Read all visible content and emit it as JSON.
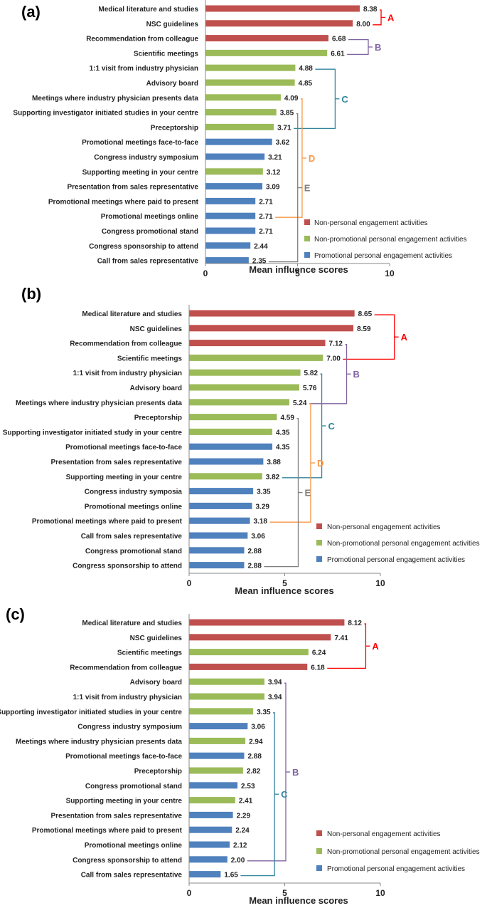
{
  "colors": {
    "non_personal": "#c0504d",
    "non_promotional": "#9bbb59",
    "promotional": "#4f81bd",
    "A": "#ff0000",
    "B": "#8064a2",
    "C": "#31859c",
    "D": "#f79646",
    "E": "#7f7f7f"
  },
  "legend": {
    "non_personal": "Non-personal engagement activities",
    "non_promotional": "Non-promotional personal engagement activities",
    "promotional": "Promotional personal engagement activities"
  },
  "chart_data": [
    {
      "type": "bar",
      "orientation": "horizontal",
      "panel": "(a)",
      "xlabel": "Mean influence scores",
      "xlim": [
        0,
        10
      ],
      "xticks": [
        "0",
        "5",
        "10"
      ],
      "categories": [
        "Medical literature and studies",
        "NSC guidelines",
        "Recommendation from colleague",
        "Scientific meetings",
        "1:1 visit from industry physician",
        "Advisory board",
        "Meetings where industry physician presents data",
        "Supporting investigator initiated studies in your centre",
        "Preceptorship",
        "Promotional meetings face-to-face",
        "Congress industry symposium",
        "Supporting meeting in your centre",
        "Presentation from sales representative",
        "Promotional meetings where paid to present",
        "Promotional meetings online",
        "Congress promotional stand",
        "Congress sponsorship to attend",
        "Call from sales representative"
      ],
      "values": [
        8.38,
        8.0,
        6.68,
        6.61,
        4.88,
        4.85,
        4.09,
        3.85,
        3.71,
        3.62,
        3.21,
        3.12,
        3.09,
        2.71,
        2.71,
        2.71,
        2.44,
        2.35
      ],
      "labels": [
        "8.38",
        "8.00",
        "6.68",
        "6.61",
        "4.88",
        "4.85",
        "4.09",
        "3.85",
        "3.71",
        "3.62",
        "3.21",
        "3.12",
        "3.09",
        "2.71",
        "2.71",
        "2.71",
        "2.44",
        "2.35"
      ],
      "series_type": [
        "non_personal",
        "non_personal",
        "non_personal",
        "non_promotional",
        "non_promotional",
        "non_promotional",
        "non_promotional",
        "non_promotional",
        "non_promotional",
        "promotional",
        "promotional",
        "non_promotional",
        "promotional",
        "promotional",
        "promotional",
        "promotional",
        "promotional",
        "promotional"
      ],
      "groups": [
        {
          "label": "A",
          "color": "A",
          "from": 0,
          "to": 1,
          "level": 0
        },
        {
          "label": "B",
          "color": "B",
          "from": 2,
          "to": 3,
          "level": 1
        },
        {
          "label": "C",
          "color": "C",
          "from": 4,
          "to": 8,
          "level": 1
        },
        {
          "label": "D",
          "color": "D",
          "from": 6,
          "to": 14,
          "level": 0
        },
        {
          "label": "E",
          "color": "E",
          "from": 7,
          "to": 17,
          "level": 0
        }
      ]
    },
    {
      "type": "bar",
      "orientation": "horizontal",
      "panel": "(b)",
      "xlabel": "Mean influence scores",
      "xlim": [
        0,
        10
      ],
      "xticks": [
        "0",
        "5",
        "10"
      ],
      "categories": [
        "Medical literature and studies",
        "NSC guidelines",
        "Recommendation from colleague",
        "Scientific meetings",
        "1:1 visit from industry physician",
        "Advisory board",
        "Meetings where industry physician presents data",
        "Preceptorship",
        "Supporting investigator initiated study in your centre",
        "Promotional meetings face-to-face",
        "Presentation from sales representative",
        "Supporting meeting in your centre",
        "Congress industry symposia",
        "Promotional meetings online",
        "Promotional meetings where paid to present",
        "Call from sales representative",
        "Congress promotional stand",
        "Congress sponsorship to attend"
      ],
      "values": [
        8.65,
        8.59,
        7.12,
        7.0,
        5.82,
        5.76,
        5.24,
        4.59,
        4.35,
        4.35,
        3.88,
        3.82,
        3.35,
        3.29,
        3.18,
        3.06,
        2.88,
        2.88
      ],
      "labels": [
        "8.65",
        "8.59",
        "7.12",
        "7.00",
        "5.82",
        "5.76",
        "5.24",
        "4.59",
        "4.35",
        "4.35",
        "3.88",
        "3.82",
        "3.35",
        "3.29",
        "3.18",
        "3.06",
        "2.88",
        "2.88"
      ],
      "series_type": [
        "non_personal",
        "non_personal",
        "non_personal",
        "non_promotional",
        "non_promotional",
        "non_promotional",
        "non_promotional",
        "non_promotional",
        "non_promotional",
        "promotional",
        "promotional",
        "non_promotional",
        "promotional",
        "promotional",
        "promotional",
        "promotional",
        "promotional",
        "promotional"
      ],
      "groups": [
        {
          "label": "A",
          "color": "A",
          "from": 0,
          "to": 3,
          "level": 1
        },
        {
          "label": "B",
          "color": "B",
          "from": 2,
          "to": 6,
          "level": 0
        },
        {
          "label": "C",
          "color": "C",
          "from": 4,
          "to": 11,
          "level": 0
        },
        {
          "label": "D",
          "color": "D",
          "from": 6,
          "to": 14,
          "level": 0
        },
        {
          "label": "E",
          "color": "E",
          "from": 7,
          "to": 17,
          "level": 0
        }
      ]
    },
    {
      "type": "bar",
      "orientation": "horizontal",
      "panel": "(c)",
      "xlabel": "Mean influence scores",
      "xlim": [
        0,
        10
      ],
      "xticks": [
        "0",
        "5",
        "10"
      ],
      "categories": [
        "Medical literature and studies",
        "NSC guidelines",
        "Scientific meetings",
        "Recommendation from colleague",
        "Advisory board",
        "1:1 visit from industry physician",
        "Supporting investigator initiated studies in your centre",
        "Congress industry symposium",
        "Meetings where industry physician presents data",
        "Promotional meetings face-to-face",
        "Preceptorship",
        "Congress promotional stand",
        "Supporting meeting in your centre",
        "Presentation from sales representative",
        "Promotional meetings where paid to present",
        "Promotional meetings online",
        "Congress sponsorship to attend",
        "Call from sales representative"
      ],
      "values": [
        8.12,
        7.41,
        6.24,
        6.18,
        3.94,
        3.94,
        3.35,
        3.06,
        2.94,
        2.88,
        2.82,
        2.53,
        2.41,
        2.29,
        2.24,
        2.12,
        2.0,
        1.65
      ],
      "labels": [
        "8.12",
        "7.41",
        "6.24",
        "6.18",
        "3.94",
        "3.94",
        "3.35",
        "3.06",
        "2.94",
        "2.88",
        "2.82",
        "2.53",
        "2.41",
        "2.29",
        "2.24",
        "2.12",
        "2.00",
        "1.65"
      ],
      "series_type": [
        "non_personal",
        "non_personal",
        "non_promotional",
        "non_personal",
        "non_promotional",
        "non_promotional",
        "non_promotional",
        "promotional",
        "non_promotional",
        "promotional",
        "non_promotional",
        "promotional",
        "non_promotional",
        "promotional",
        "promotional",
        "promotional",
        "promotional",
        "promotional"
      ],
      "groups": [
        {
          "label": "A",
          "color": "A",
          "from": 0,
          "to": 3,
          "level": 0
        },
        {
          "label": "B",
          "color": "B",
          "from": 4,
          "to": 16,
          "level": 0
        },
        {
          "label": "C",
          "color": "C",
          "from": 6,
          "to": 17,
          "level": 0
        }
      ]
    }
  ]
}
